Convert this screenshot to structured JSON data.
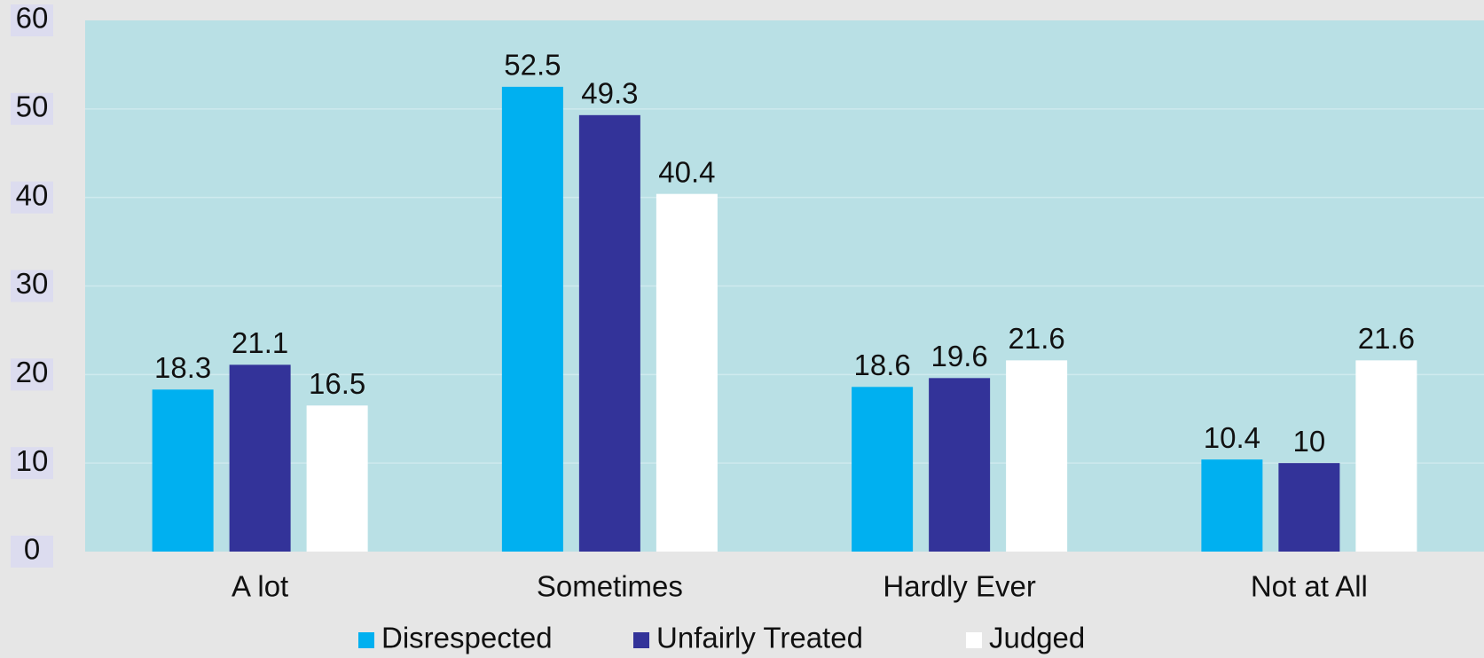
{
  "chart_data": {
    "type": "bar",
    "categories": [
      "A lot",
      "Sometimes",
      "Hardly Ever",
      "Not at All"
    ],
    "series": [
      {
        "name": "Disrespected",
        "color": "#00b0f0",
        "values": [
          18.3,
          52.5,
          18.6,
          10.4
        ]
      },
      {
        "name": "Unfairly Treated",
        "color": "#333399",
        "values": [
          21.1,
          49.3,
          19.6,
          10
        ]
      },
      {
        "name": "Judged",
        "color": "#ffffff",
        "values": [
          16.5,
          40.4,
          21.6,
          21.6
        ]
      }
    ],
    "ylim": [
      0,
      60
    ],
    "yticks": [
      0,
      10,
      20,
      30,
      40,
      50,
      60
    ],
    "grid": true,
    "legend": "bottom"
  }
}
